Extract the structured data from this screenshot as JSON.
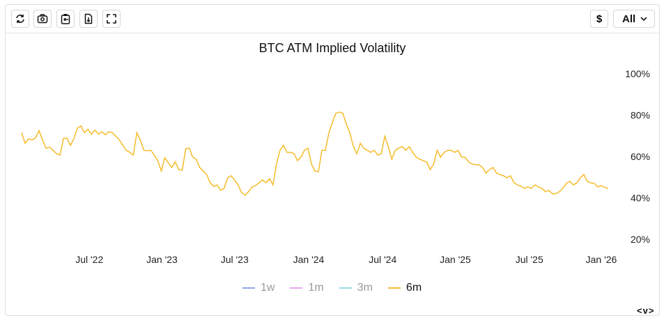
{
  "toolbar": {
    "buttons": [
      "refresh-icon",
      "camera-icon",
      "clipboard-icon",
      "download-file-icon",
      "fullscreen-icon"
    ],
    "currency_label": "$",
    "range_select": "All"
  },
  "chart_data": {
    "type": "line",
    "title": "BTC ATM Implied Volatility",
    "xlabel": "",
    "ylabel": "",
    "ylim": [
      20,
      100
    ],
    "y_ticks": [
      "20%",
      "40%",
      "60%",
      "80%",
      "100%"
    ],
    "y_tick_values": [
      20,
      40,
      60,
      80,
      100
    ],
    "x_ticks": [
      {
        "label": "Jul '22",
        "index": 19.4
      },
      {
        "label": "Jan '23",
        "index": 40.2
      },
      {
        "label": "Jul '23",
        "index": 61
      },
      {
        "label": "Jan '24",
        "index": 82.2
      },
      {
        "label": "Jul '24",
        "index": 103.4
      },
      {
        "label": "Jan '25",
        "index": 124.2
      },
      {
        "label": "Jul '25",
        "index": 145.4
      },
      {
        "label": "Jan '26",
        "index": 166
      }
    ],
    "legend": [
      {
        "name": "1w",
        "color": "#8fa8f0",
        "active": false
      },
      {
        "name": "1m",
        "color": "#e9a6f0",
        "active": false
      },
      {
        "name": "3m",
        "color": "#8fe0e8",
        "active": false
      },
      {
        "name": "6m",
        "color": "#f5bc2a",
        "active": true
      }
    ],
    "series": [
      {
        "name": "6m",
        "color": "#f5bc2a",
        "values": [
          71.5,
          66.4,
          68.5,
          68,
          69,
          72.5,
          68,
          64,
          64.5,
          63,
          61.4,
          60.7,
          68.8,
          68.8,
          65.4,
          68.8,
          73.8,
          74.8,
          71.5,
          73.2,
          70.8,
          72.8,
          70.8,
          72,
          70.5,
          72,
          71.5,
          69.8,
          68,
          65.4,
          63,
          62,
          60.7,
          71.5,
          68,
          63,
          62.8,
          63,
          60.7,
          58,
          53,
          59.4,
          57,
          54.7,
          57.4,
          53.7,
          53.4,
          63.8,
          64,
          59.7,
          58.7,
          54.7,
          53,
          51.3,
          47.3,
          45.6,
          46.3,
          43.6,
          44.6,
          49.7,
          50.7,
          48.7,
          46.3,
          42.6,
          41.3,
          43,
          45.3,
          46,
          47.3,
          48.7,
          47.3,
          49.3,
          46.3,
          56.4,
          63,
          65.4,
          62,
          62,
          61.4,
          58,
          59.7,
          63,
          64,
          56.4,
          53,
          52.7,
          63,
          63,
          71.5,
          76.5,
          80.9,
          81.5,
          80.9,
          75.5,
          71.5,
          64.8,
          61.4,
          66.4,
          64,
          63,
          62,
          63,
          60.7,
          61.4,
          69.8,
          64.8,
          58.7,
          63,
          64,
          64.8,
          63,
          64.8,
          62,
          59.7,
          58.7,
          58,
          57.4,
          53.7,
          56.4,
          63,
          59.7,
          62,
          63,
          63,
          62,
          63,
          59.7,
          59.7,
          57.4,
          56.4,
          56,
          56,
          54.7,
          52,
          53.7,
          54.7,
          52,
          51.3,
          50.7,
          49.7,
          50.7,
          47.3,
          46.3,
          45.6,
          44.6,
          45.3,
          44.6,
          46.3,
          45.3,
          44.6,
          43,
          43.6,
          42,
          42,
          43,
          44.6,
          47,
          48,
          46.3,
          47.3,
          49.7,
          51.3,
          48,
          47.3,
          47,
          45.3,
          46,
          45,
          44.6
        ]
      }
    ]
  },
  "nav_label": "<v>"
}
